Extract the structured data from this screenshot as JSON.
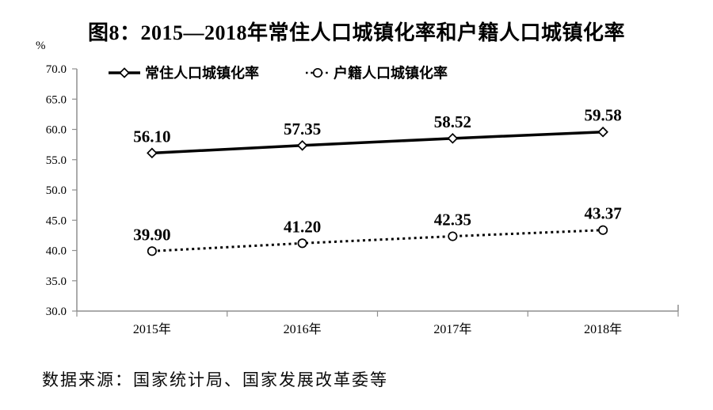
{
  "title": "图8：2015—2018年常住人口城镇化率和户籍人口城镇化率",
  "source_note": "数据来源：国家统计局、国家发展改革委等",
  "colors": {
    "axis": "#8f8f8f",
    "series": "#000000",
    "text": "#000000",
    "marker_fill": "#ffffff"
  },
  "chart_data": {
    "type": "line",
    "categories": [
      "2015年",
      "2016年",
      "2017年",
      "2018年"
    ],
    "series": [
      {
        "name": "常住人口城镇化率",
        "values": [
          56.1,
          57.35,
          58.52,
          59.58
        ],
        "line_style": "solid",
        "marker": "diamond"
      },
      {
        "name": "户籍人口城镇化率",
        "values": [
          39.9,
          41.2,
          42.35,
          43.37
        ],
        "line_style": "dotted",
        "marker": "circle"
      }
    ],
    "title": "图8：2015—2018年常住人口城镇化率和户籍人口城镇化率",
    "xlabel": "",
    "ylabel": "%",
    "ylim": [
      30.0,
      70.0
    ],
    "ytick_step": 5.0,
    "grid": false,
    "legend_position": "top",
    "data_labels": true
  }
}
